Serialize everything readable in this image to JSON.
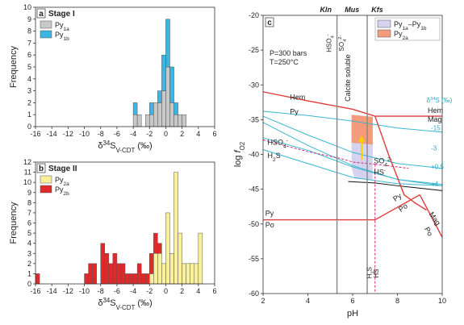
{
  "chart_data": [
    {
      "type": "bar",
      "panel_label": "a",
      "title": "Stage I",
      "xlabel": "δ34SV-CDT (‰)",
      "ylabel": "Frequency",
      "xlim": [
        -16,
        6
      ],
      "ylim": [
        0,
        10
      ],
      "xticks": [
        "-16",
        "-14",
        "-12",
        "-10",
        "-8",
        "-6",
        "-4",
        "-2",
        "0",
        "2",
        "4",
        "6"
      ],
      "yticks": [
        "0",
        "1",
        "2",
        "3",
        "4",
        "5",
        "6",
        "7",
        "8",
        "9",
        "10"
      ],
      "bin_width": 0.5,
      "stacked": true,
      "legend_position": "top-left",
      "series": [
        {
          "name": "Py1a",
          "color": "#c8c8c8",
          "bins": [
            {
              "x0": -4.0,
              "value": 1
            },
            {
              "x0": -3.5,
              "value": 1
            },
            {
              "x0": -2.5,
              "value": 1
            },
            {
              "x0": -2.0,
              "value": 1
            },
            {
              "x0": -1.5,
              "value": 2
            },
            {
              "x0": -1.0,
              "value": 2
            },
            {
              "x0": -0.5,
              "value": 3
            },
            {
              "x0": 0.0,
              "value": 5
            },
            {
              "x0": 0.5,
              "value": 2
            },
            {
              "x0": 1.0,
              "value": 1
            },
            {
              "x0": 1.5,
              "value": 1
            },
            {
              "x0": 2.0,
              "value": 1
            }
          ]
        },
        {
          "name": "Py1b",
          "color": "#3db5e3",
          "bins": [
            {
              "x0": -4.0,
              "value": 1
            },
            {
              "x0": -2.0,
              "value": 1
            },
            {
              "x0": -1.0,
              "value": 1
            },
            {
              "x0": -0.5,
              "value": 3
            },
            {
              "x0": 0.0,
              "value": 4
            },
            {
              "x0": 0.5,
              "value": 3
            },
            {
              "x0": 1.0,
              "value": 1
            }
          ]
        }
      ]
    },
    {
      "type": "bar",
      "panel_label": "b",
      "title": "Stage II",
      "xlabel": "δ34SV-CDT (‰)",
      "ylabel": "Frequency",
      "xlim": [
        -16,
        6
      ],
      "ylim": [
        0,
        12
      ],
      "xticks": [
        "-16",
        "-14",
        "-12",
        "-10",
        "-8",
        "-6",
        "-4",
        "-2",
        "0",
        "2",
        "4",
        "6"
      ],
      "yticks": [
        "0",
        "1",
        "2",
        "3",
        "4",
        "5",
        "6",
        "7",
        "8",
        "9",
        "10",
        "11",
        "12"
      ],
      "bin_width": 0.5,
      "stacked": true,
      "legend_position": "top-left",
      "series": [
        {
          "name": "Py2a",
          "color": "#f8f09a",
          "bins": [
            {
              "x0": -2.0,
              "value": 1
            },
            {
              "x0": -1.5,
              "value": 3
            },
            {
              "x0": -1.0,
              "value": 3
            },
            {
              "x0": -0.5,
              "value": 2
            },
            {
              "x0": 0.0,
              "value": 7
            },
            {
              "x0": 0.5,
              "value": 3
            },
            {
              "x0": 1.0,
              "value": 11
            },
            {
              "x0": 1.5,
              "value": 5
            },
            {
              "x0": 2.0,
              "value": 2
            },
            {
              "x0": 2.5,
              "value": 2
            },
            {
              "x0": 3.0,
              "value": 2
            },
            {
              "x0": 3.5,
              "value": 2
            },
            {
              "x0": 4.0,
              "value": 5
            }
          ]
        },
        {
          "name": "Py2b",
          "color": "#e02a2a",
          "bins": [
            {
              "x0": -16.0,
              "value": 1
            },
            {
              "x0": -10.0,
              "value": 1
            },
            {
              "x0": -9.5,
              "value": 2
            },
            {
              "x0": -9.0,
              "value": 2
            },
            {
              "x0": -8.0,
              "value": 4
            },
            {
              "x0": -7.5,
              "value": 3
            },
            {
              "x0": -7.0,
              "value": 2
            },
            {
              "x0": -6.5,
              "value": 3
            },
            {
              "x0": -6.0,
              "value": 2
            },
            {
              "x0": -5.5,
              "value": 2
            },
            {
              "x0": -5.0,
              "value": 1
            },
            {
              "x0": -4.5,
              "value": 1
            },
            {
              "x0": -4.0,
              "value": 1
            },
            {
              "x0": -3.5,
              "value": 2
            },
            {
              "x0": -3.0,
              "value": 1
            },
            {
              "x0": -2.5,
              "value": 1
            },
            {
              "x0": -2.0,
              "value": 2
            },
            {
              "x0": -1.5,
              "value": 2
            },
            {
              "x0": -1.0,
              "value": 1
            }
          ]
        }
      ]
    },
    {
      "type": "line",
      "panel_label": "c",
      "xlabel": "pH",
      "ylabel": "log fO2",
      "xlim": [
        2,
        10
      ],
      "ylim": [
        -60,
        -20
      ],
      "xticks": [
        "2",
        "4",
        "6",
        "8",
        "10"
      ],
      "yticks": [
        "-20",
        "-25",
        "-30",
        "-35",
        "-40",
        "-45",
        "-50",
        "-55",
        "-60"
      ],
      "conditions": [
        "P=300 bars",
        "T=250°C"
      ],
      "region_labels": [
        "Kln",
        "Mus",
        "Kfs"
      ],
      "legend_position": "top-right",
      "legend": [
        {
          "name": "Py1a–Py1b",
          "color": "#d6d3ee"
        },
        {
          "name": "Py2a",
          "color": "#f49a7d"
        }
      ],
      "region_lines": [
        {
          "name": "Kln-Mus",
          "x": 5.3
        },
        {
          "name": "Mus-Kfs",
          "x": 6.65
        }
      ],
      "annotations": [
        {
          "text": "Calcite soluble",
          "x": 5.9,
          "y": -29
        },
        {
          "text": "Hem",
          "x": 3.2,
          "y": -32.1
        },
        {
          "text": "Py",
          "x": 3.2,
          "y": -34.2
        },
        {
          "text": "Hem",
          "x": 9.35,
          "y": -34.0
        },
        {
          "text": "Mag",
          "x": 9.35,
          "y": -35.3
        },
        {
          "text": "HSO4-",
          "x": 2.2,
          "y": -38.6
        },
        {
          "text": "H2S",
          "x": 2.2,
          "y": -40.5
        },
        {
          "text": "SO42-",
          "x": 6.95,
          "y": -41.3
        },
        {
          "text": "HS-",
          "x": 6.95,
          "y": -42.9
        },
        {
          "text": "Py",
          "x": 2.1,
          "y": -48.8
        },
        {
          "text": "Po",
          "x": 2.1,
          "y": -50.5
        },
        {
          "text": "Py",
          "x": 7.9,
          "y": -46.8
        },
        {
          "text": "Po",
          "x": 8.15,
          "y": -48.3
        },
        {
          "text": "Mag",
          "x": 9.4,
          "y": -48.6
        },
        {
          "text": "Po",
          "x": 9.2,
          "y": -50.7
        }
      ],
      "fO2_contours": [
        {
          "label": "δ34S (‰)",
          "x": 9.3,
          "y": -32.5
        },
        {
          "label": "-15",
          "x": 9.5,
          "y": -36.5
        },
        {
          "label": "-3",
          "x": 9.5,
          "y": -39.4
        },
        {
          "label": "+0.5",
          "x": 9.5,
          "y": -42.1
        },
        {
          "label": "+4",
          "x": 9.5,
          "y": -44.6
        }
      ],
      "vertical_species": [
        {
          "text": "HSO4-",
          "x": 5.05,
          "y": -24.0
        },
        {
          "text": "SO42-",
          "x": 5.6,
          "y": -24.0
        },
        {
          "text": "H2S",
          "x": 6.85,
          "y": -57.0
        },
        {
          "text": "HS-",
          "x": 7.15,
          "y": -57.0
        }
      ],
      "series": [
        {
          "name": "cyan-1",
          "color": "#3ab7cf",
          "x": [
            2,
            4,
            6,
            8,
            10
          ],
          "y": [
            -33.8,
            -34.4,
            -35.2,
            -36.2,
            -36.8
          ]
        },
        {
          "name": "cyan-2",
          "color": "#3ab7cf",
          "x": [
            2,
            4,
            6,
            8,
            10
          ],
          "y": [
            -34.5,
            -37.2,
            -39.7,
            -41.3,
            -42.0
          ]
        },
        {
          "name": "cyan-3",
          "color": "#3ab7cf",
          "x": [
            2,
            4,
            6,
            8,
            10
          ],
          "y": [
            -35.4,
            -38.7,
            -41.6,
            -43.6,
            -44.5
          ]
        },
        {
          "name": "cyan-4",
          "color": "#3ab7cf",
          "x": [
            2,
            4,
            6,
            8,
            10
          ],
          "y": [
            -37.6,
            -39.4,
            -41.8,
            -43.6,
            -44.3
          ]
        },
        {
          "name": "cyan-5",
          "color": "#3ab7cf",
          "x": [
            2,
            4,
            6,
            8,
            10
          ],
          "y": [
            -39.3,
            -41.3,
            -43.3,
            -44.2,
            -44.5
          ]
        },
        {
          "name": "black",
          "color": "#111111",
          "x": [
            5.8,
            7,
            8,
            10
          ],
          "y": [
            -43.9,
            -44.1,
            -44.5,
            -45.2
          ]
        },
        {
          "name": "Hem/Py",
          "color": "#e03c3c",
          "x": [
            2,
            4,
            6,
            7
          ],
          "y": [
            -31.0,
            -32.3,
            -33.5,
            -34.5
          ]
        },
        {
          "name": "Hem/Mag",
          "color": "#e03c3c",
          "x": [
            7,
            10
          ],
          "y": [
            -34.5,
            -34.5
          ]
        },
        {
          "name": "Py/Mag",
          "color": "#e03c3c",
          "x": [
            7,
            7.6,
            8.3,
            8.8,
            9.3
          ],
          "y": [
            -34.5,
            -40.0,
            -45.8,
            -47.0,
            -48.0
          ]
        },
        {
          "name": "Py/Po",
          "color": "#e03c3c",
          "x": [
            2,
            6.5,
            7,
            9
          ],
          "y": [
            -49.4,
            -49.4,
            -49.4,
            -45.8
          ]
        },
        {
          "name": "Po/Mag",
          "color": "#e03c3c",
          "x": [
            9,
            10
          ],
          "y": [
            -45.8,
            -51.9
          ]
        },
        {
          "name": "HSO4-/H2S",
          "color": "#d4267a",
          "x": [
            2,
            4,
            5.5,
            6,
            7
          ],
          "y": [
            -37.9,
            -39.6,
            -40.6,
            -41.1,
            -41.4
          ]
        },
        {
          "name": "SO42-/HS-",
          "color": "#d4267a",
          "x": [
            7,
            8.5
          ],
          "y": [
            -41.4,
            -42.0
          ]
        },
        {
          "name": "HSO4-/SO42- (vertical)",
          "color": "#d4267a",
          "x": [
            5.3,
            5.3
          ],
          "y": [
            -20,
            -60
          ]
        },
        {
          "name": "H2S/HS- (vertical)",
          "color": "#d4267a",
          "x": [
            7.0,
            7.0
          ],
          "y": [
            -41.4,
            -60
          ]
        }
      ],
      "regions": [
        {
          "name": "Py1a–Py1b",
          "color": "#d6d3ee",
          "points": [
            [
              5.95,
              -34.3
            ],
            [
              6.9,
              -34.6
            ],
            [
              6.9,
              -43.6
            ],
            [
              6.1,
              -43.5
            ],
            [
              5.95,
              -42.0
            ]
          ]
        },
        {
          "name": "Py2a",
          "color": "#f49a7d",
          "points": [
            [
              5.95,
              -34.3
            ],
            [
              6.9,
              -34.6
            ],
            [
              6.9,
              -38.6
            ],
            [
              5.95,
              -38.3
            ]
          ]
        }
      ],
      "arrow": {
        "from": [
          6.4,
          -40.8
        ],
        "to": [
          6.4,
          -37.5
        ],
        "color": "#f5d200"
      }
    }
  ]
}
